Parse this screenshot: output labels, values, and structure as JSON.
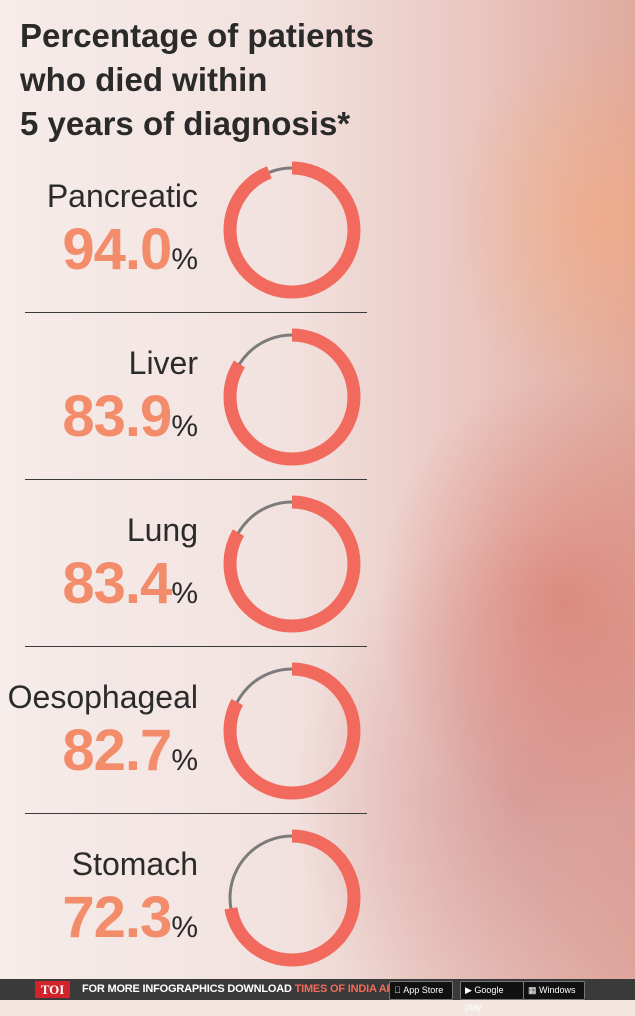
{
  "title": {
    "line1": "Percentage of patients",
    "line2": "who died within",
    "line3_bold": "5 years",
    "line3_rest": " of diagnosis*"
  },
  "chart_data": {
    "type": "donut",
    "title": "Percentage of patients who died within 5 years of diagnosis*",
    "unit": "%",
    "categories": [
      "Pancreatic",
      "Liver",
      "Lung",
      "Oesophageal",
      "Stomach"
    ],
    "values": [
      94.0,
      83.9,
      83.4,
      82.7,
      72.3
    ],
    "value_labels": [
      "94.0",
      "83.9",
      "83.4",
      "82.7",
      "72.3"
    ],
    "fill_color": "#f16a5d",
    "remainder_color": "#7b7b7b",
    "value_color": "#f28c6a"
  },
  "footer": {
    "logo": "TOI",
    "text": "FOR MORE  INFOGRAPHICS DOWNLOAD ",
    "brand": "TIMES OF INDIA  APP",
    "badges": [
      "App Store",
      "Google play",
      "Windows"
    ]
  }
}
